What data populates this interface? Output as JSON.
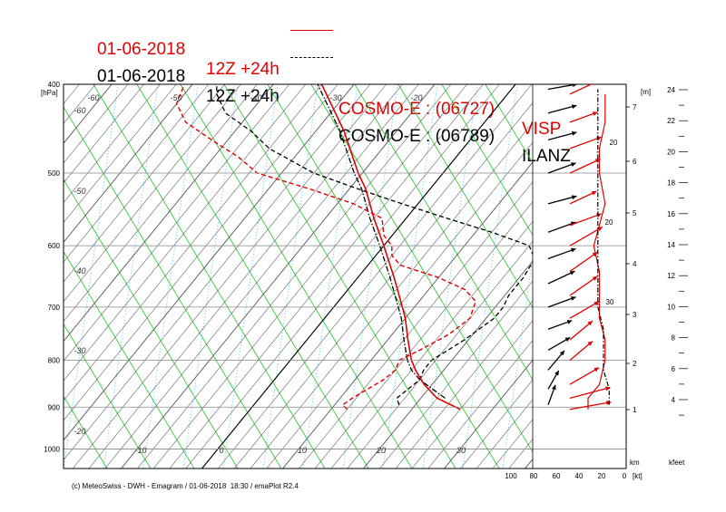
{
  "titles": {
    "line1": {
      "date": "01-06-2018",
      "run": "12Z +24h",
      "model": "COSMO-E : (06727)",
      "station": "VISP",
      "color": "#e00000",
      "style": "solid"
    },
    "line2": {
      "date": "01-06-2018",
      "run": "12Z +24h",
      "model": "COSMO-E : (06789)",
      "station": "ILANZ",
      "color": "#000000",
      "style": "dash-dot"
    }
  },
  "footer": "(c) MeteoSwiss - DWH - Emagram / 01-06-2018  18:30 / emaPlot R2.4",
  "chart_data": {
    "type": "line",
    "pressure_axis": {
      "label": "[hPa]",
      "ticks": [
        400,
        500,
        600,
        700,
        800,
        900,
        1000
      ],
      "scale": "log"
    },
    "temperature_axis": {
      "ticks": [
        -10,
        0,
        10,
        20,
        30
      ]
    },
    "isotherm_labels": [
      -60,
      -50,
      -40,
      -30,
      -20,
      -60,
      -50,
      -40,
      -30,
      -20
    ],
    "height_axis_m": {
      "label": "[m]",
      "ticks": [
        1,
        2,
        3,
        4,
        5,
        6,
        7
      ]
    },
    "height_axis_kfeet": {
      "label": "kfeet",
      "ticks": [
        4,
        6,
        8,
        10,
        12,
        14,
        16,
        18,
        20,
        22,
        24
      ]
    },
    "wind_axis": {
      "label": "[kt]",
      "km_label": "km",
      "ticks": [
        100,
        80,
        60,
        40,
        20,
        0
      ]
    },
    "wind_speed_labels": [
      20,
      30,
      20
    ],
    "colors": {
      "visp": "#e00000",
      "ilanz": "#000000",
      "isotherm": "#555555",
      "dry_adiabat": "#33cc33",
      "mixing_ratio": "#66ccff",
      "grid": "#888888"
    },
    "series": [
      {
        "name": "VISP",
        "temperature": {
          "p": [
            905,
            880,
            850,
            820,
            800,
            760,
            720,
            700,
            650,
            600,
            560,
            520,
            500,
            450,
            400
          ],
          "t": [
            26.0,
            22.0,
            19.0,
            16.5,
            15.0,
            12.5,
            10.0,
            8.5,
            4.5,
            0.0,
            -4.0,
            -8.0,
            -10.5,
            -16.5,
            -24.0
          ]
        },
        "dewpoint": {
          "p": [
            905,
            895,
            880,
            860,
            840,
            820,
            800,
            780,
            750,
            720,
            690,
            670,
            650,
            630,
            615,
            600,
            585,
            560,
            540,
            520,
            500,
            480,
            460,
            440,
            420,
            400
          ],
          "t": [
            12.0,
            11.0,
            11.5,
            12.5,
            13.5,
            14.0,
            13.5,
            15.0,
            17.0,
            18.0,
            17.0,
            14.5,
            10.0,
            4.0,
            2.0,
            1.0,
            -1.0,
            -3.0,
            -8.0,
            -15.0,
            -23.0,
            -27.0,
            -32.0,
            -37.0,
            -40.0,
            -41.0
          ]
        },
        "wind": [
          {
            "p": 905,
            "dir": 260,
            "spd": 40
          },
          {
            "p": 880,
            "dir": 255,
            "spd": 40
          },
          {
            "p": 850,
            "dir": 240,
            "spd": 30
          },
          {
            "p": 800,
            "dir": 230,
            "spd": 25
          },
          {
            "p": 760,
            "dir": 230,
            "spd": 25
          },
          {
            "p": 720,
            "dir": 240,
            "spd": 30
          },
          {
            "p": 680,
            "dir": 235,
            "spd": 30
          },
          {
            "p": 640,
            "dir": 235,
            "spd": 30
          },
          {
            "p": 600,
            "dir": 240,
            "spd": 35
          },
          {
            "p": 570,
            "dir": 250,
            "spd": 30
          },
          {
            "p": 540,
            "dir": 245,
            "spd": 25
          },
          {
            "p": 500,
            "dir": 245,
            "spd": 30
          },
          {
            "p": 470,
            "dir": 250,
            "spd": 30
          },
          {
            "p": 440,
            "dir": 250,
            "spd": 25
          },
          {
            "p": 410,
            "dir": 245,
            "spd": 25
          }
        ]
      },
      {
        "name": "ILANZ",
        "temperature": {
          "p": [
            880,
            860,
            840,
            820,
            800,
            760,
            720,
            700,
            650,
            600,
            560,
            520,
            500,
            450,
            400
          ],
          "t": [
            23.0,
            20.5,
            18.0,
            16.0,
            14.5,
            12.0,
            9.5,
            8.0,
            4.0,
            -0.5,
            -4.5,
            -8.5,
            -11.0,
            -17.0,
            -24.5
          ]
        },
        "dewpoint": {
          "p": [
            895,
            880,
            860,
            840,
            820,
            800,
            780,
            760,
            720,
            700,
            680,
            650,
            620,
            600,
            580,
            560,
            540,
            520,
            500,
            470,
            450,
            430,
            410,
            400
          ],
          "t": [
            18.0,
            17.0,
            17.5,
            18.0,
            17.5,
            17.5,
            18.5,
            19.5,
            21.0,
            21.0,
            20.5,
            20.5,
            20.0,
            18.0,
            12.0,
            5.0,
            -2.0,
            -9.0,
            -16.0,
            -24.0,
            -28.0,
            -33.0,
            -36.0,
            -37.0
          ]
        },
        "wind": [
          {
            "p": 895,
            "dir": 200,
            "spd": 15
          },
          {
            "p": 860,
            "dir": 210,
            "spd": 15
          },
          {
            "p": 820,
            "dir": 220,
            "spd": 20
          },
          {
            "p": 780,
            "dir": 240,
            "spd": 20
          },
          {
            "p": 740,
            "dir": 250,
            "spd": 20
          },
          {
            "p": 700,
            "dir": 250,
            "spd": 25
          },
          {
            "p": 660,
            "dir": 245,
            "spd": 25
          },
          {
            "p": 620,
            "dir": 250,
            "spd": 25
          },
          {
            "p": 580,
            "dir": 250,
            "spd": 25
          },
          {
            "p": 540,
            "dir": 255,
            "spd": 25
          },
          {
            "p": 500,
            "dir": 250,
            "spd": 25
          },
          {
            "p": 460,
            "dir": 255,
            "spd": 25
          },
          {
            "p": 430,
            "dir": 255,
            "spd": 25
          },
          {
            "p": 405,
            "dir": 260,
            "spd": 25
          }
        ]
      }
    ]
  }
}
